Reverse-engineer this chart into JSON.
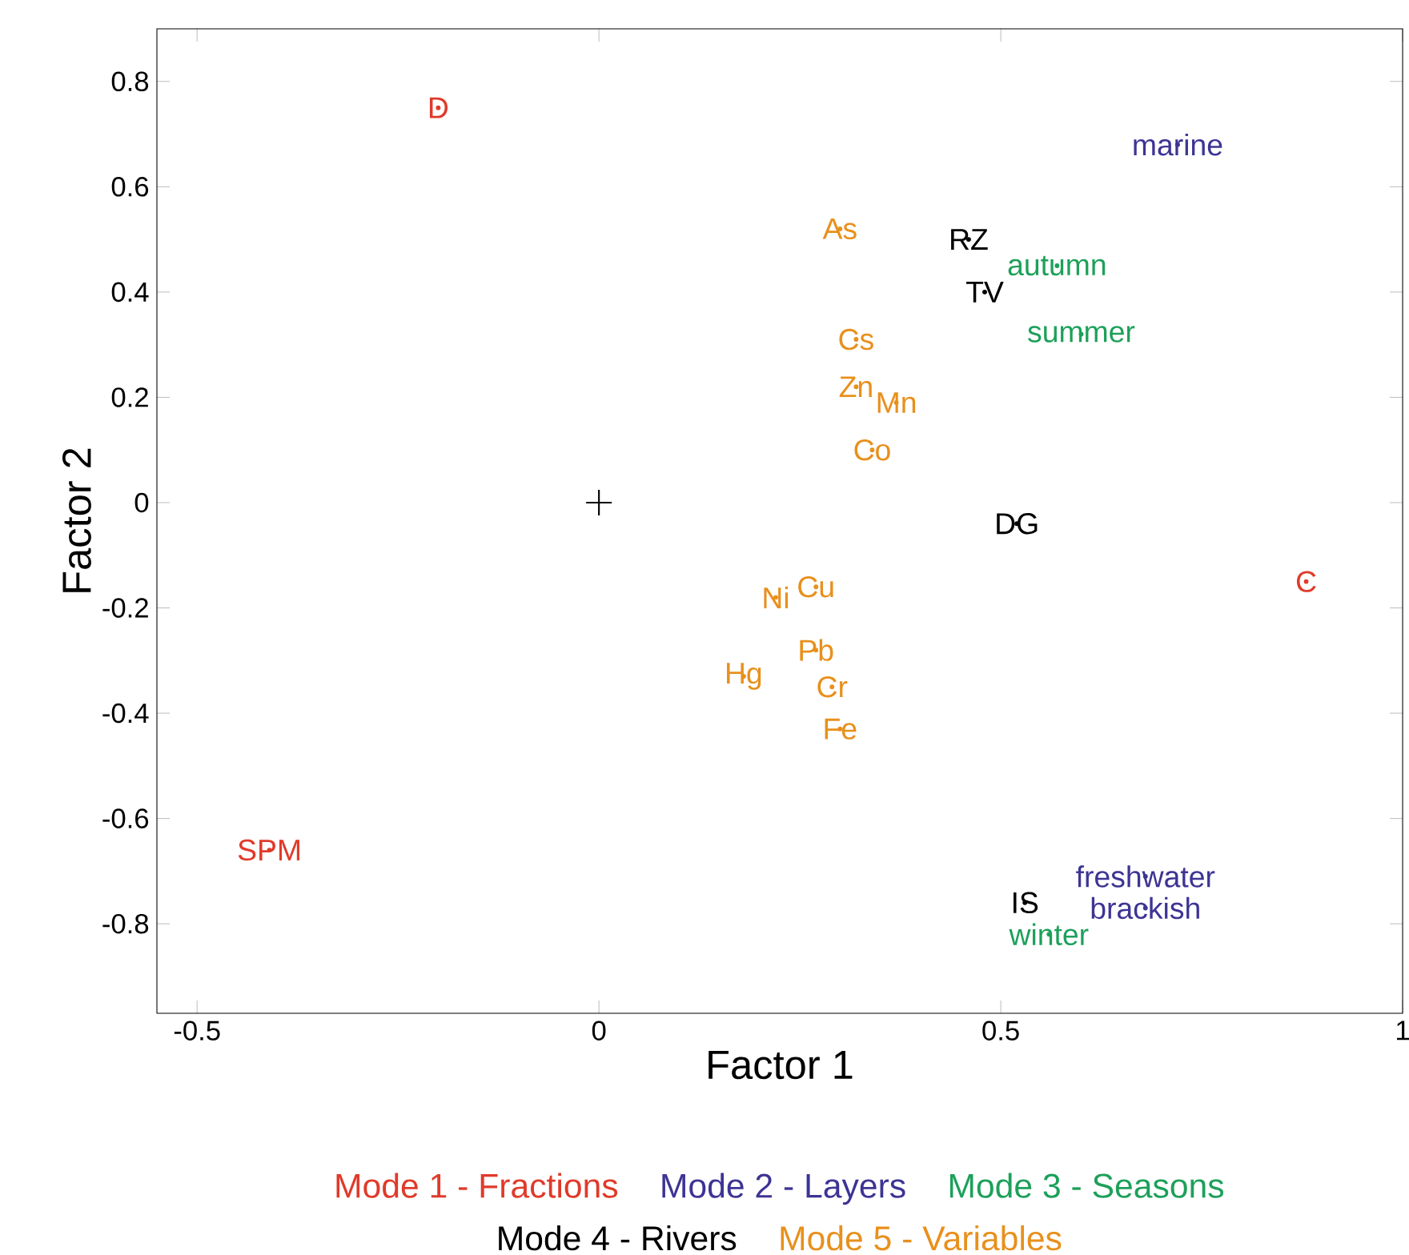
{
  "chart_data": {
    "type": "scatter",
    "xlabel": "Factor 1",
    "ylabel": "Factor 2",
    "xlim": [
      -0.55,
      1.0
    ],
    "ylim": [
      -0.97,
      0.9
    ],
    "xticks": [
      -0.5,
      0,
      0.5,
      1
    ],
    "yticks": [
      -0.8,
      -0.6,
      -0.4,
      -0.2,
      0,
      0.2,
      0.4,
      0.6,
      0.8
    ],
    "marker": "circle",
    "grid": false,
    "series": [
      {
        "color": "#000000",
        "x": [
          0
        ],
        "values": [
          0
        ],
        "marker": "cross"
      },
      {
        "name": "Mode 1 - Fractions",
        "color": "#e03a2a",
        "x": [
          -0.2,
          0.88,
          -0.41
        ],
        "values": [
          0.75,
          -0.15,
          -0.66
        ],
        "value_labels": [
          "D",
          "C",
          "SPM"
        ]
      },
      {
        "name": "Mode 2 - Layers",
        "color": "#3d3494",
        "x": [
          0.72,
          0.68,
          0.68
        ],
        "values": [
          0.68,
          -0.71,
          -0.77
        ],
        "value_labels": [
          "marine",
          "freshwater",
          "brackish"
        ]
      },
      {
        "name": "Mode 3 - Seasons",
        "color": "#1da05a",
        "x": [
          0.57,
          0.6,
          0.56
        ],
        "values": [
          0.45,
          0.32,
          -0.82
        ],
        "value_labels": [
          "autumn",
          "summer",
          "winter"
        ]
      },
      {
        "name": "Mode 4 - Rivers",
        "color": "#000000",
        "x": [
          0.46,
          0.48,
          0.52,
          0.53
        ],
        "values": [
          0.5,
          0.4,
          -0.04,
          -0.76
        ],
        "value_labels": [
          "RZ",
          "TV",
          "DG",
          "IS"
        ]
      },
      {
        "name": "Mode 5 - Variables",
        "color": "#e8901c",
        "x": [
          0.3,
          0.32,
          0.32,
          0.37,
          0.34,
          0.22,
          0.27,
          0.27,
          0.18,
          0.29,
          0.3
        ],
        "values": [
          0.52,
          0.31,
          0.22,
          0.19,
          0.1,
          -0.18,
          -0.16,
          -0.28,
          -0.33,
          -0.35,
          -0.43
        ],
        "value_labels": [
          "As",
          "Cs",
          "Zn",
          "Mn",
          "Co",
          "Ni",
          "Cu",
          "Pb",
          "Hg",
          "Cr",
          "Fe"
        ]
      }
    ]
  }
}
